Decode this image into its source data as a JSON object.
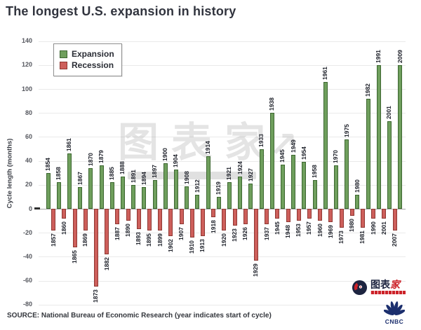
{
  "title": "The longest U.S. expansion in history",
  "legend": [
    {
      "label": "Expansion",
      "color": "#6f9f5d"
    },
    {
      "label": "Recession",
      "color": "#cd5f5b"
    }
  ],
  "y_axis": {
    "label": "Cycle length (months)",
    "ticks": [
      140,
      120,
      100,
      80,
      60,
      40,
      20,
      0,
      -20,
      -40,
      -60,
      -80
    ]
  },
  "source": "SOURCE: National Bureau of Economic Research (year indicates start of cycle)",
  "watermark": {
    "text": "图表家",
    "arrow": "↗"
  },
  "logos": {
    "tubiaojia_prefix": "图表",
    "tubiaojia_suffix": "家",
    "cnbc": "CNBC"
  },
  "chart_data": {
    "type": "bar",
    "title": "The longest U.S. expansion in history",
    "xlabel": "",
    "ylabel": "Cycle length (months)",
    "ylim": [
      -80,
      140
    ],
    "ytick_interval": 20,
    "grid": true,
    "legend_position": "upper-left",
    "note": "Expansion bars plotted upward (positive months), recession bars plotted downward (negative months); year label indicates start of cycle.",
    "colors": {
      "expansion_fill": "#6f9f5d",
      "expansion_edge": "#3c6630",
      "recession_fill": "#cd5f5b",
      "recession_edge": "#8f3732"
    },
    "cycles": [
      {
        "year": "1854",
        "kind": "expansion",
        "months": 30
      },
      {
        "year": "1857",
        "kind": "recession",
        "months": 18
      },
      {
        "year": "1858",
        "kind": "expansion",
        "months": 22
      },
      {
        "year": "1860",
        "kind": "recession",
        "months": 8
      },
      {
        "year": "1861",
        "kind": "expansion",
        "months": 46
      },
      {
        "year": "1865",
        "kind": "recession",
        "months": 32
      },
      {
        "year": "1867",
        "kind": "expansion",
        "months": 18
      },
      {
        "year": "1869",
        "kind": "recession",
        "months": 18
      },
      {
        "year": "1870",
        "kind": "expansion",
        "months": 34
      },
      {
        "year": "1873",
        "kind": "recession",
        "months": 65
      },
      {
        "year": "1879",
        "kind": "expansion",
        "months": 36
      },
      {
        "year": "1882",
        "kind": "recession",
        "months": 38
      },
      {
        "year": "1885",
        "kind": "expansion",
        "months": 22
      },
      {
        "year": "1887",
        "kind": "recession",
        "months": 13
      },
      {
        "year": "1888",
        "kind": "expansion",
        "months": 27
      },
      {
        "year": "1890",
        "kind": "recession",
        "months": 10
      },
      {
        "year": "1891",
        "kind": "expansion",
        "months": 20
      },
      {
        "year": "1893",
        "kind": "recession",
        "months": 17
      },
      {
        "year": "1894",
        "kind": "expansion",
        "months": 18
      },
      {
        "year": "1895",
        "kind": "recession",
        "months": 18
      },
      {
        "year": "1897",
        "kind": "expansion",
        "months": 24
      },
      {
        "year": "1899",
        "kind": "recession",
        "months": 18
      },
      {
        "year": "1900",
        "kind": "expansion",
        "months": 38
      },
      {
        "year": "1902",
        "kind": "recession",
        "months": 23
      },
      {
        "year": "1904",
        "kind": "expansion",
        "months": 33
      },
      {
        "year": "1907",
        "kind": "recession",
        "months": 13
      },
      {
        "year": "1908",
        "kind": "expansion",
        "months": 19
      },
      {
        "year": "1910",
        "kind": "recession",
        "months": 24
      },
      {
        "year": "1912",
        "kind": "expansion",
        "months": 12
      },
      {
        "year": "1913",
        "kind": "recession",
        "months": 23
      },
      {
        "year": "1914",
        "kind": "expansion",
        "months": 44
      },
      {
        "year": "1918",
        "kind": "recession",
        "months": 7
      },
      {
        "year": "1919",
        "kind": "expansion",
        "months": 10
      },
      {
        "year": "1920",
        "kind": "recession",
        "months": 18
      },
      {
        "year": "1921",
        "kind": "expansion",
        "months": 22
      },
      {
        "year": "1923",
        "kind": "recession",
        "months": 14
      },
      {
        "year": "1924",
        "kind": "expansion",
        "months": 27
      },
      {
        "year": "1926",
        "kind": "recession",
        "months": 13
      },
      {
        "year": "1927",
        "kind": "expansion",
        "months": 21
      },
      {
        "year": "1929",
        "kind": "recession",
        "months": 43
      },
      {
        "year": "1933",
        "kind": "expansion",
        "months": 50
      },
      {
        "year": "1937",
        "kind": "recession",
        "months": 13
      },
      {
        "year": "1938",
        "kind": "expansion",
        "months": 80
      },
      {
        "year": "1945",
        "kind": "recession",
        "months": 8
      },
      {
        "year": "1945",
        "kind": "expansion",
        "months": 37
      },
      {
        "year": "1948",
        "kind": "recession",
        "months": 11
      },
      {
        "year": "1949",
        "kind": "expansion",
        "months": 45
      },
      {
        "year": "1953",
        "kind": "recession",
        "months": 10
      },
      {
        "year": "1954",
        "kind": "expansion",
        "months": 39
      },
      {
        "year": "1957",
        "kind": "recession",
        "months": 8
      },
      {
        "year": "1958",
        "kind": "expansion",
        "months": 24
      },
      {
        "year": "1960",
        "kind": "recession",
        "months": 10
      },
      {
        "year": "1961",
        "kind": "expansion",
        "months": 106
      },
      {
        "year": "1969",
        "kind": "recession",
        "months": 11
      },
      {
        "year": "1970",
        "kind": "expansion",
        "months": 36
      },
      {
        "year": "1973",
        "kind": "recession",
        "months": 16
      },
      {
        "year": "1975",
        "kind": "expansion",
        "months": 58
      },
      {
        "year": "1980",
        "kind": "recession",
        "months": 6
      },
      {
        "year": "1980",
        "kind": "expansion",
        "months": 12
      },
      {
        "year": "1981",
        "kind": "recession",
        "months": 16
      },
      {
        "year": "1982",
        "kind": "expansion",
        "months": 92
      },
      {
        "year": "1990",
        "kind": "recession",
        "months": 8
      },
      {
        "year": "1991",
        "kind": "expansion",
        "months": 120
      },
      {
        "year": "2001",
        "kind": "recession",
        "months": 8
      },
      {
        "year": "2001",
        "kind": "expansion",
        "months": 73
      },
      {
        "year": "2007",
        "kind": "recession",
        "months": 18
      },
      {
        "year": "2009",
        "kind": "expansion",
        "months": 120
      }
    ]
  }
}
